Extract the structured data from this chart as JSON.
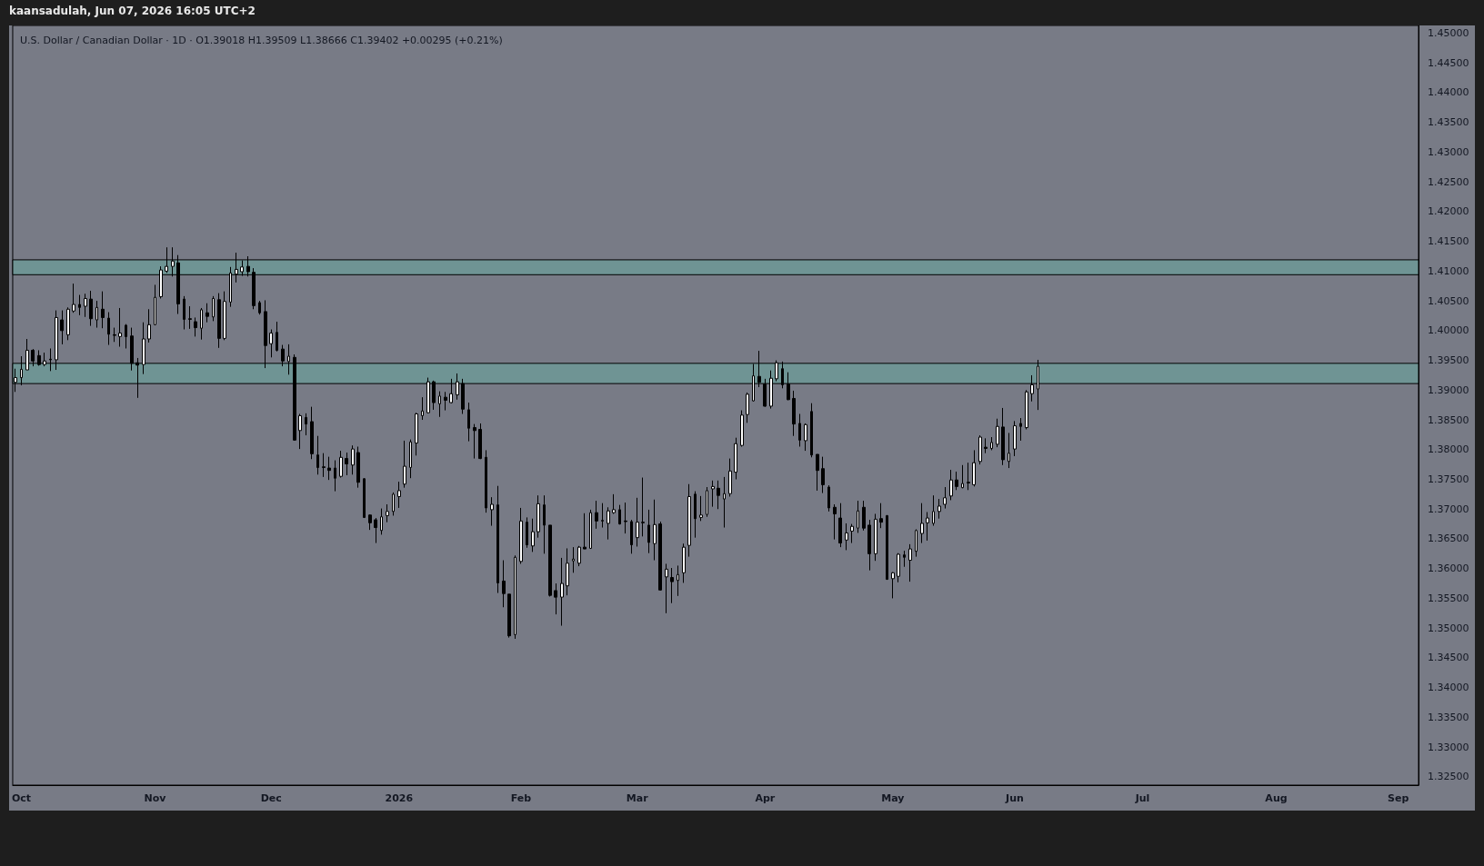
{
  "chart_data": {
    "type": "candlestick",
    "title": "U.S. Dollar / Canadian Dollar · 1D · O1.39018 H1.39509 L1.38666 C1.39402 +0.00295 (+0.21%)",
    "annotations": [
      "kaansadulah, Jun 07, 2026 16:05 UTC+2"
    ],
    "categories": [
      null,
      "Oct",
      null,
      null,
      null,
      null,
      null,
      null,
      null,
      null,
      null,
      null,
      null,
      null,
      null,
      null,
      null,
      null,
      null,
      null,
      null,
      null,
      null,
      null,
      "Nov",
      null,
      null,
      null,
      null,
      null,
      null,
      null,
      null,
      null,
      null,
      null,
      null,
      null,
      null,
      null,
      null,
      null,
      null,
      null,
      "Dec",
      null,
      null,
      null,
      null,
      null,
      null,
      null,
      null,
      null,
      null,
      null,
      null,
      null,
      null,
      null,
      null,
      null,
      null,
      null,
      null,
      null,
      "2026",
      null,
      null,
      null,
      null,
      null,
      null,
      null,
      null,
      null,
      null,
      null,
      null,
      null,
      null,
      null,
      null,
      null,
      null,
      null,
      null,
      "Feb",
      null,
      null,
      null,
      null,
      null,
      null,
      null,
      null,
      null,
      null,
      null,
      null,
      null,
      null,
      null,
      null,
      null,
      null,
      null,
      "Mar",
      null,
      null,
      null,
      null,
      null,
      null,
      null,
      null,
      null,
      null,
      null,
      null,
      null,
      null,
      null,
      null,
      null,
      null,
      null,
      null,
      null,
      "Apr",
      null,
      null,
      null,
      null,
      null,
      null,
      null,
      null,
      null,
      null,
      null,
      null,
      null,
      null,
      null,
      null,
      null,
      null,
      null,
      null,
      null,
      "May",
      null,
      null,
      null,
      null,
      null,
      null,
      null,
      null,
      null,
      null,
      null,
      null,
      null,
      null,
      null,
      null,
      null,
      null,
      null,
      null,
      "Jun",
      null,
      null,
      null,
      null,
      null,
      null,
      null,
      null,
      null,
      null,
      null,
      null,
      null,
      null,
      null,
      null,
      null,
      null,
      null,
      null,
      null,
      "Jul",
      null,
      null,
      null,
      null,
      null,
      null,
      null,
      null,
      null,
      null,
      null,
      null,
      null,
      null,
      null,
      null,
      null,
      null,
      null,
      null,
      null,
      null,
      "Aug",
      null,
      null,
      null,
      null,
      null,
      null,
      null,
      null,
      null,
      null,
      null,
      null,
      null,
      null,
      null,
      null,
      null,
      null,
      null,
      null,
      "Sep",
      null,
      null,
      null
    ],
    "ohlc": [
      [
        1.3913,
        1.3936,
        1.3897,
        1.3921
      ],
      [
        1.3921,
        1.3957,
        1.3908,
        1.3935
      ],
      [
        1.3934,
        1.3986,
        1.3934,
        1.3967
      ],
      [
        1.3967,
        1.3969,
        1.394,
        1.3949
      ],
      [
        1.3958,
        1.3967,
        1.3941,
        1.3943
      ],
      [
        1.3943,
        1.3963,
        1.394,
        1.3949
      ],
      [
        1.3952,
        1.397,
        1.3932,
        1.3951
      ],
      [
        1.3951,
        1.4034,
        1.3934,
        1.4022
      ],
      [
        1.4018,
        1.4034,
        1.3977,
        1.4
      ],
      [
        1.3993,
        1.4039,
        1.3984,
        1.4036
      ],
      [
        1.4033,
        1.4079,
        1.403,
        1.4044
      ],
      [
        1.4044,
        1.406,
        1.4026,
        1.4039
      ],
      [
        1.4041,
        1.4062,
        1.4023,
        1.4054
      ],
      [
        1.4053,
        1.4067,
        1.4008,
        1.402
      ],
      [
        1.4018,
        1.405,
        1.4005,
        1.4039
      ],
      [
        1.4036,
        1.4066,
        1.4004,
        1.4022
      ],
      [
        1.4021,
        1.4031,
        1.3976,
        1.3994
      ],
      [
        1.3993,
        1.4005,
        1.3981,
        1.3992
      ],
      [
        1.399,
        1.4038,
        1.3973,
        1.3996
      ],
      [
        1.4009,
        1.4011,
        1.397,
        1.399
      ],
      [
        1.3991,
        1.4005,
        1.3933,
        1.3945
      ],
      [
        1.3946,
        1.3954,
        1.3887,
        1.3942
      ],
      [
        1.3943,
        1.4014,
        1.3927,
        1.3986
      ],
      [
        1.3986,
        1.4036,
        1.398,
        1.401
      ],
      [
        1.401,
        1.4077,
        1.4009,
        1.4056
      ],
      [
        1.4057,
        1.4108,
        1.4054,
        1.4102
      ],
      [
        1.41,
        1.414,
        1.4097,
        1.4108
      ],
      [
        1.4108,
        1.414,
        1.4091,
        1.4117
      ],
      [
        1.4114,
        1.4127,
        1.4028,
        1.4045
      ],
      [
        1.4053,
        1.4058,
        1.4002,
        1.4019
      ],
      [
        1.402,
        1.4041,
        1.4003,
        1.4019
      ],
      [
        1.4015,
        1.4022,
        1.399,
        1.4005
      ],
      [
        1.4004,
        1.4038,
        1.3985,
        1.4035
      ],
      [
        1.403,
        1.4046,
        1.4014,
        1.4024
      ],
      [
        1.4023,
        1.4058,
        1.4016,
        1.4054
      ],
      [
        1.4052,
        1.4063,
        1.3971,
        1.3987
      ],
      [
        1.3987,
        1.4066,
        1.3984,
        1.4049
      ],
      [
        1.4048,
        1.4107,
        1.404,
        1.4097
      ],
      [
        1.4095,
        1.4131,
        1.4081,
        1.4103
      ],
      [
        1.4099,
        1.4118,
        1.4092,
        1.4107
      ],
      [
        1.4108,
        1.4125,
        1.4091,
        1.4099
      ],
      [
        1.4098,
        1.4105,
        1.4036,
        1.4042
      ],
      [
        1.4047,
        1.405,
        1.4027,
        1.403
      ],
      [
        1.4032,
        1.4051,
        1.3937,
        1.3975
      ],
      [
        1.3978,
        1.4002,
        1.3955,
        1.3996
      ],
      [
        1.3997,
        1.4015,
        1.3965,
        1.3967
      ],
      [
        1.3969,
        1.3976,
        1.394,
        1.3949
      ],
      [
        1.3948,
        1.3977,
        1.3926,
        1.3957
      ],
      [
        1.3955,
        1.396,
        1.3815,
        1.3816
      ],
      [
        1.3832,
        1.386,
        1.3801,
        1.3857
      ],
      [
        1.3854,
        1.3861,
        1.3824,
        1.3843
      ],
      [
        1.3847,
        1.3872,
        1.3784,
        1.3793
      ],
      [
        1.3791,
        1.3823,
        1.3758,
        1.377
      ],
      [
        1.3771,
        1.3794,
        1.3754,
        1.377
      ],
      [
        1.3769,
        1.3788,
        1.3749,
        1.3765
      ],
      [
        1.3769,
        1.3782,
        1.373,
        1.3752
      ],
      [
        1.3755,
        1.3798,
        1.3753,
        1.3787
      ],
      [
        1.3785,
        1.3795,
        1.3757,
        1.3776
      ],
      [
        1.3774,
        1.3807,
        1.3758,
        1.3801
      ],
      [
        1.3795,
        1.3805,
        1.3736,
        1.3745
      ],
      [
        1.3751,
        1.3752,
        1.3685,
        1.3686
      ],
      [
        1.369,
        1.3691,
        1.3665,
        1.3677
      ],
      [
        1.3682,
        1.3685,
        1.3643,
        1.3669
      ],
      [
        1.3664,
        1.3701,
        1.3657,
        1.3687
      ],
      [
        1.3689,
        1.3708,
        1.3678,
        1.3696
      ],
      [
        1.3696,
        1.3728,
        1.3689,
        1.3725
      ],
      [
        1.3721,
        1.3746,
        1.3702,
        1.3731
      ],
      [
        1.3742,
        1.3815,
        1.3736,
        1.3772
      ],
      [
        1.377,
        1.3817,
        1.3752,
        1.3813
      ],
      [
        1.3811,
        1.3862,
        1.379,
        1.386
      ],
      [
        1.3857,
        1.3888,
        1.385,
        1.3865
      ],
      [
        1.3862,
        1.3921,
        1.3861,
        1.3914
      ],
      [
        1.3914,
        1.3916,
        1.3867,
        1.3879
      ],
      [
        1.3877,
        1.3898,
        1.3855,
        1.389
      ],
      [
        1.3888,
        1.3897,
        1.3866,
        1.3883
      ],
      [
        1.3879,
        1.3919,
        1.3878,
        1.3894
      ],
      [
        1.3892,
        1.3928,
        1.3884,
        1.3914
      ],
      [
        1.3911,
        1.3919,
        1.386,
        1.3868
      ],
      [
        1.3867,
        1.3879,
        1.3814,
        1.3836
      ],
      [
        1.3837,
        1.3843,
        1.3785,
        1.3832
      ],
      [
        1.3834,
        1.3844,
        1.3784,
        1.3785
      ],
      [
        1.3787,
        1.3799,
        1.3694,
        1.3702
      ],
      [
        1.3699,
        1.372,
        1.3672,
        1.3708
      ],
      [
        1.3707,
        1.3739,
        1.3559,
        1.3576
      ],
      [
        1.3579,
        1.3614,
        1.3535,
        1.3558
      ],
      [
        1.3557,
        1.3557,
        1.3484,
        1.3487
      ],
      [
        1.3489,
        1.3622,
        1.3482,
        1.3619
      ],
      [
        1.3612,
        1.3702,
        1.3608,
        1.368
      ],
      [
        1.3678,
        1.3686,
        1.3635,
        1.364
      ],
      [
        1.3638,
        1.3684,
        1.3628,
        1.3662
      ],
      [
        1.3662,
        1.3723,
        1.3652,
        1.3709
      ],
      [
        1.3707,
        1.3723,
        1.3625,
        1.3673
      ],
      [
        1.3673,
        1.3673,
        1.3553,
        1.3555
      ],
      [
        1.3563,
        1.3575,
        1.3523,
        1.3552
      ],
      [
        1.3552,
        1.3618,
        1.3504,
        1.3575
      ],
      [
        1.3571,
        1.3634,
        1.3555,
        1.3609
      ],
      [
        1.3613,
        1.3636,
        1.3593,
        1.3616
      ],
      [
        1.3609,
        1.3638,
        1.3604,
        1.3636
      ],
      [
        1.3636,
        1.3693,
        1.3633,
        1.3633
      ],
      [
        1.3634,
        1.3699,
        1.3633,
        1.3694
      ],
      [
        1.3694,
        1.3714,
        1.3667,
        1.368
      ],
      [
        1.3681,
        1.371,
        1.3669,
        1.368
      ],
      [
        1.3676,
        1.3703,
        1.3649,
        1.3697
      ],
      [
        1.3694,
        1.3725,
        1.3692,
        1.3699
      ],
      [
        1.3699,
        1.3707,
        1.3674,
        1.3675
      ],
      [
        1.368,
        1.3711,
        1.3659,
        1.3679
      ],
      [
        1.3679,
        1.3682,
        1.3625,
        1.364
      ],
      [
        1.3652,
        1.3719,
        1.3637,
        1.3678
      ],
      [
        1.3678,
        1.3753,
        1.3654,
        1.3677
      ],
      [
        1.3673,
        1.3699,
        1.3626,
        1.3644
      ],
      [
        1.3642,
        1.3716,
        1.3614,
        1.3674
      ],
      [
        1.3675,
        1.3679,
        1.3563,
        1.3564
      ],
      [
        1.3586,
        1.3608,
        1.3525,
        1.3599
      ],
      [
        1.3585,
        1.3601,
        1.3542,
        1.3578
      ],
      [
        1.358,
        1.3605,
        1.3554,
        1.359
      ],
      [
        1.3593,
        1.3642,
        1.3576,
        1.3636
      ],
      [
        1.3639,
        1.3742,
        1.362,
        1.3721
      ],
      [
        1.3725,
        1.373,
        1.3652,
        1.3684
      ],
      [
        1.3686,
        1.3722,
        1.368,
        1.369
      ],
      [
        1.3691,
        1.3737,
        1.3687,
        1.3731
      ],
      [
        1.3734,
        1.3748,
        1.3704,
        1.3738
      ],
      [
        1.3735,
        1.3748,
        1.37,
        1.3723
      ],
      [
        1.3717,
        1.3754,
        1.3669,
        1.3726
      ],
      [
        1.3726,
        1.3785,
        1.3721,
        1.3764
      ],
      [
        1.3762,
        1.382,
        1.375,
        1.381
      ],
      [
        1.3807,
        1.3866,
        1.3805,
        1.3858
      ],
      [
        1.3859,
        1.3896,
        1.3845,
        1.3893
      ],
      [
        1.3882,
        1.3944,
        1.3881,
        1.3924
      ],
      [
        1.3923,
        1.3966,
        1.3905,
        1.3913
      ],
      [
        1.391,
        1.3919,
        1.3872,
        1.3873
      ],
      [
        1.3873,
        1.3933,
        1.3869,
        1.392
      ],
      [
        1.3919,
        1.395,
        1.3915,
        1.3946
      ],
      [
        1.3936,
        1.3948,
        1.3903,
        1.3909
      ],
      [
        1.391,
        1.393,
        1.3883,
        1.3884
      ],
      [
        1.3886,
        1.3899,
        1.3823,
        1.3843
      ],
      [
        1.3844,
        1.386,
        1.3805,
        1.3816
      ],
      [
        1.3815,
        1.3844,
        1.3798,
        1.3842
      ],
      [
        1.3864,
        1.3878,
        1.3787,
        1.3791
      ],
      [
        1.3792,
        1.3792,
        1.3731,
        1.3765
      ],
      [
        1.3768,
        1.3788,
        1.3727,
        1.3741
      ],
      [
        1.3737,
        1.374,
        1.3696,
        1.3702
      ],
      [
        1.3703,
        1.3708,
        1.3649,
        1.3692
      ],
      [
        1.3685,
        1.371,
        1.3636,
        1.3643
      ],
      [
        1.3648,
        1.3676,
        1.3631,
        1.366
      ],
      [
        1.3663,
        1.3675,
        1.3643,
        1.3671
      ],
      [
        1.3668,
        1.3714,
        1.366,
        1.3697
      ],
      [
        1.3703,
        1.3714,
        1.3664,
        1.3668
      ],
      [
        1.3673,
        1.3682,
        1.3597,
        1.3625
      ],
      [
        1.3625,
        1.3692,
        1.3613,
        1.3683
      ],
      [
        1.3684,
        1.371,
        1.3668,
        1.3678
      ],
      [
        1.3689,
        1.369,
        1.3581,
        1.3582
      ],
      [
        1.3583,
        1.3594,
        1.355,
        1.3593
      ],
      [
        1.3587,
        1.3626,
        1.3577,
        1.3624
      ],
      [
        1.3623,
        1.363,
        1.3603,
        1.3619
      ],
      [
        1.3614,
        1.3641,
        1.3578,
        1.3633
      ],
      [
        1.3629,
        1.3666,
        1.362,
        1.3664
      ],
      [
        1.3659,
        1.371,
        1.3643,
        1.3676
      ],
      [
        1.3677,
        1.3695,
        1.3647,
        1.3685
      ],
      [
        1.3676,
        1.3723,
        1.3672,
        1.3696
      ],
      [
        1.3696,
        1.3717,
        1.3684,
        1.3705
      ],
      [
        1.3708,
        1.3737,
        1.3701,
        1.3719
      ],
      [
        1.3722,
        1.3766,
        1.3715,
        1.3749
      ],
      [
        1.3749,
        1.3763,
        1.3732,
        1.3738
      ],
      [
        1.3736,
        1.3774,
        1.3735,
        1.3743
      ],
      [
        1.3745,
        1.3778,
        1.3732,
        1.3744
      ],
      [
        1.3741,
        1.3799,
        1.3738,
        1.3778
      ],
      [
        1.378,
        1.3824,
        1.3775,
        1.3821
      ],
      [
        1.3804,
        1.3819,
        1.3794,
        1.3802
      ],
      [
        1.3802,
        1.3821,
        1.3799,
        1.3812
      ],
      [
        1.3809,
        1.3852,
        1.3804,
        1.3839
      ],
      [
        1.3838,
        1.387,
        1.3774,
        1.3783
      ],
      [
        1.378,
        1.3828,
        1.3769,
        1.3794
      ],
      [
        1.3801,
        1.3848,
        1.3789,
        1.384
      ],
      [
        1.3844,
        1.3853,
        1.3815,
        1.3839
      ],
      [
        1.3837,
        1.39,
        1.3834,
        1.3897
      ],
      [
        1.3894,
        1.3925,
        1.3881,
        1.3909
      ],
      [
        1.39018,
        1.39509,
        1.38666,
        1.39402
      ],
      null,
      null,
      null,
      null,
      null,
      null,
      null,
      null,
      null,
      null,
      null,
      null,
      null,
      null,
      null,
      null,
      null,
      null,
      null,
      null,
      null,
      null,
      null,
      null,
      null,
      null,
      null,
      null,
      null,
      null,
      null,
      null,
      null,
      null,
      null,
      null,
      null,
      null,
      null,
      null,
      null,
      null,
      null,
      null,
      null,
      null,
      null,
      null,
      null,
      null,
      null,
      null,
      null,
      null,
      null,
      null,
      null,
      null,
      null,
      null,
      null,
      null,
      null,
      null,
      null
    ],
    "ylim": [
      1.3236,
      1.4513
    ],
    "yticks": [
      {
        "value": 1.325,
        "label": "1.32500"
      },
      {
        "value": 1.33,
        "label": "1.33000"
      },
      {
        "value": 1.335,
        "label": "1.33500"
      },
      {
        "value": 1.34,
        "label": "1.34000"
      },
      {
        "value": 1.345,
        "label": "1.34500"
      },
      {
        "value": 1.35,
        "label": "1.35000"
      },
      {
        "value": 1.355,
        "label": "1.35500"
      },
      {
        "value": 1.36,
        "label": "1.36000"
      },
      {
        "value": 1.365,
        "label": "1.36500"
      },
      {
        "value": 1.37,
        "label": "1.37000"
      },
      {
        "value": 1.375,
        "label": "1.37500"
      },
      {
        "value": 1.38,
        "label": "1.38000"
      },
      {
        "value": 1.385,
        "label": "1.38500"
      },
      {
        "value": 1.39,
        "label": "1.39000"
      },
      {
        "value": 1.395,
        "label": "1.39500"
      },
      {
        "value": 1.4,
        "label": "1.40000"
      },
      {
        "value": 1.405,
        "label": "1.40500"
      },
      {
        "value": 1.41,
        "label": "1.41000"
      },
      {
        "value": 1.415,
        "label": "1.41500"
      },
      {
        "value": 1.42,
        "label": "1.42000"
      },
      {
        "value": 1.425,
        "label": "1.42500"
      },
      {
        "value": 1.43,
        "label": "1.43000"
      },
      {
        "value": 1.435,
        "label": "1.43500"
      },
      {
        "value": 1.44,
        "label": "1.44000"
      },
      {
        "value": 1.445,
        "label": "1.44500"
      },
      {
        "value": 1.45,
        "label": "1.45000"
      }
    ],
    "bands": [
      {
        "axis": "y",
        "from": 1.4094,
        "to": 1.4119,
        "color": "#6f9494"
      },
      {
        "axis": "y",
        "from": 1.3911,
        "to": 1.3945,
        "color": "#6f9494"
      }
    ]
  }
}
